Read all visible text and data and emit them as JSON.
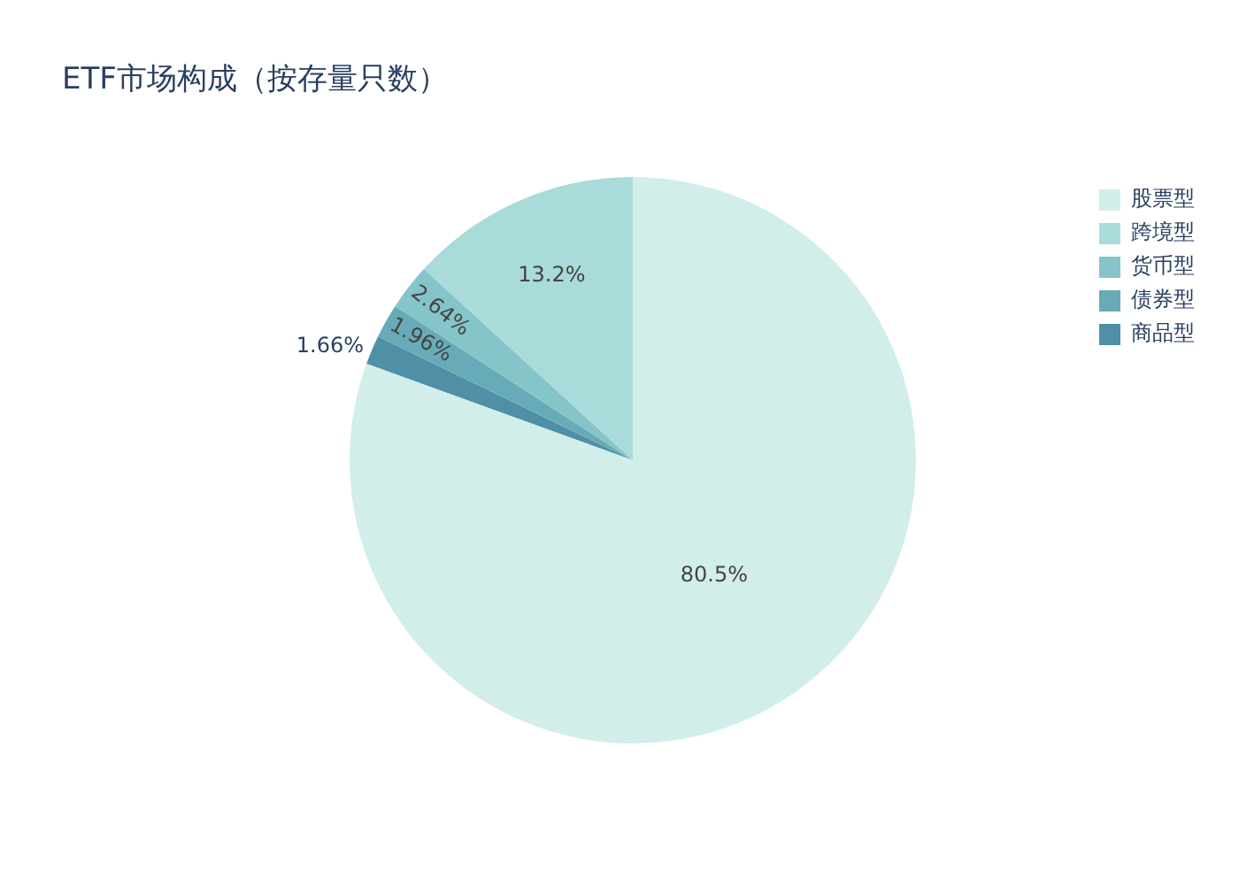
{
  "chart_data": {
    "type": "pie",
    "title": "ETF市场构成（按存量只数）",
    "categories": [
      "股票型",
      "跨境型",
      "货币型",
      "债券型",
      "商品型"
    ],
    "values": [
      80.5,
      13.2,
      2.64,
      1.96,
      1.66
    ],
    "colors": [
      "#d1eeea",
      "#a8dbd9",
      "#85c4c9",
      "#68abb8",
      "#4f90a6"
    ],
    "value_labels": [
      "80.5%",
      "13.2%",
      "2.64%",
      "1.96%",
      "1.66%"
    ],
    "legend": "top right"
  }
}
